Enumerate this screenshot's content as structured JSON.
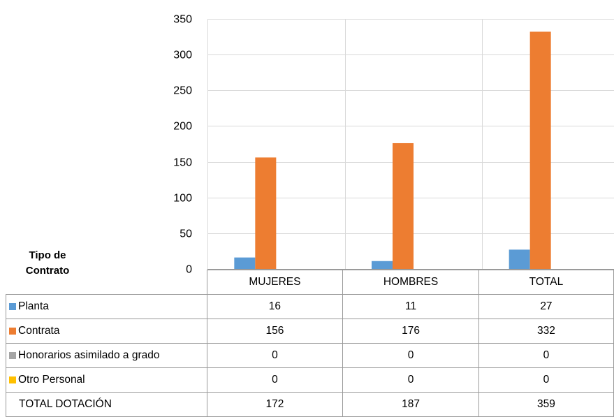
{
  "chart_data": {
    "type": "bar",
    "categories": [
      "MUJERES",
      "HOMBRES",
      "TOTAL"
    ],
    "series": [
      {
        "name": "Planta",
        "values": [
          16,
          11,
          27
        ],
        "color": "#5B9BD5"
      },
      {
        "name": "Contrata",
        "values": [
          156,
          176,
          332
        ],
        "color": "#ED7D31"
      },
      {
        "name": "Honorarios asimilado a grado",
        "values": [
          0,
          0,
          0
        ],
        "color": "#A5A5A5"
      },
      {
        "name": "Otro Personal",
        "values": [
          0,
          0,
          0
        ],
        "color": "#FFC000"
      }
    ],
    "ylim": [
      0,
      350
    ],
    "yticks": [
      0,
      50,
      100,
      150,
      200,
      250,
      300,
      350
    ],
    "grid": true,
    "legend": "data-table",
    "table_title": [
      "Tipo de",
      "Contrato"
    ],
    "total_row": {
      "label": "TOTAL DOTACIÓN",
      "values": [
        172,
        187,
        359
      ]
    }
  }
}
